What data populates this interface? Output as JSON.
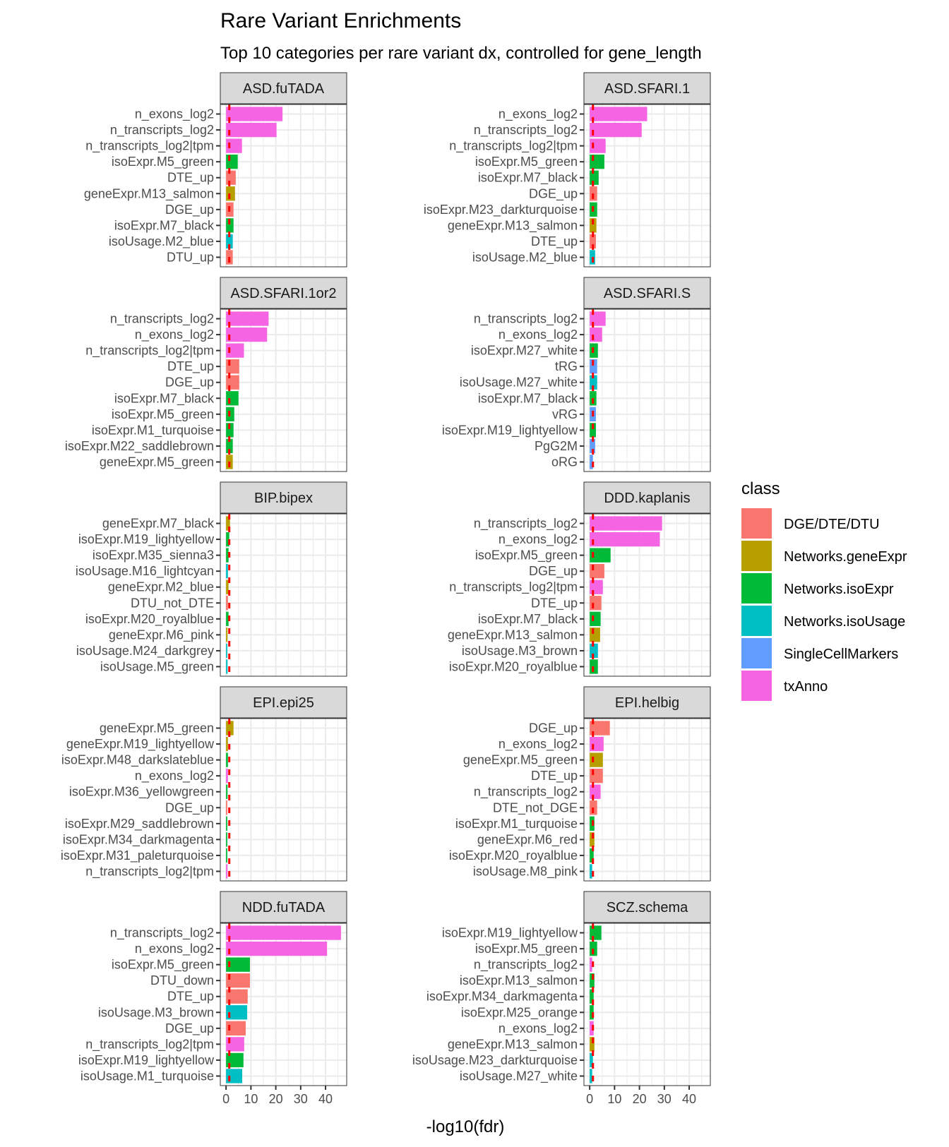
{
  "chart_data": {
    "type": "bar",
    "orientation": "horizontal",
    "title": "Rare Variant Enrichments",
    "subtitle": "Top 10 categories per rare variant dx, controlled for gene_length",
    "xlabel": "-log10(fdr)",
    "ylabel": "",
    "xlim": [
      -2.31,
      48.5
    ],
    "x_ticks": [
      0,
      10,
      20,
      30,
      40
    ],
    "grid": true,
    "reference_line": {
      "x": 1.3,
      "color": "#FF0000",
      "style": "dashed"
    },
    "legend": {
      "title": "class",
      "placement": "right",
      "entries": [
        {
          "label": "DGE/DTE/DTU",
          "color": "#F8766D"
        },
        {
          "label": "Networks.geneExpr",
          "color": "#B79F00"
        },
        {
          "label": "Networks.isoExpr",
          "color": "#00BA38"
        },
        {
          "label": "Networks.isoUsage",
          "color": "#00BFC4"
        },
        {
          "label": "SingleCellMarkers",
          "color": "#619CFF"
        },
        {
          "label": "txAnno",
          "color": "#F564E3"
        }
      ]
    },
    "facets": [
      {
        "name": "ASD.fuTADA",
        "bars": [
          {
            "label": "n_exons_log2",
            "value": 22.7,
            "class": "txAnno"
          },
          {
            "label": "n_transcripts_log2",
            "value": 20.3,
            "class": "txAnno"
          },
          {
            "label": "n_transcripts_log2|tpm",
            "value": 6.4,
            "class": "txAnno"
          },
          {
            "label": "isoExpr.M5_green",
            "value": 4.7,
            "class": "Networks.isoExpr"
          },
          {
            "label": "DTE_up",
            "value": 3.9,
            "class": "DGE/DTE/DTU"
          },
          {
            "label": "geneExpr.M13_salmon",
            "value": 3.6,
            "class": "Networks.geneExpr"
          },
          {
            "label": "DGE_up",
            "value": 3.0,
            "class": "DGE/DTE/DTU"
          },
          {
            "label": "isoExpr.M7_black",
            "value": 3.0,
            "class": "Networks.isoExpr"
          },
          {
            "label": "isoUsage.M2_blue",
            "value": 2.7,
            "class": "Networks.isoUsage"
          },
          {
            "label": "DTU_up",
            "value": 2.7,
            "class": "DGE/DTE/DTU"
          }
        ]
      },
      {
        "name": "ASD.SFARI.1",
        "bars": [
          {
            "label": "n_exons_log2",
            "value": 23.1,
            "class": "txAnno"
          },
          {
            "label": "n_transcripts_log2",
            "value": 20.9,
            "class": "txAnno"
          },
          {
            "label": "n_transcripts_log2|tpm",
            "value": 6.4,
            "class": "txAnno"
          },
          {
            "label": "isoExpr.M5_green",
            "value": 5.9,
            "class": "Networks.isoExpr"
          },
          {
            "label": "isoExpr.M7_black",
            "value": 3.6,
            "class": "Networks.isoExpr"
          },
          {
            "label": "DGE_up",
            "value": 3.0,
            "class": "DGE/DTE/DTU"
          },
          {
            "label": "isoExpr.M23_darkturquoise",
            "value": 3.0,
            "class": "Networks.isoExpr"
          },
          {
            "label": "geneExpr.M13_salmon",
            "value": 2.7,
            "class": "Networks.geneExpr"
          },
          {
            "label": "DTE_up",
            "value": 2.5,
            "class": "DGE/DTE/DTU"
          },
          {
            "label": "isoUsage.M2_blue",
            "value": 2.2,
            "class": "Networks.isoUsage"
          }
        ]
      },
      {
        "name": "ASD.SFARI.1or2",
        "bars": [
          {
            "label": "n_transcripts_log2",
            "value": 17.1,
            "class": "txAnno"
          },
          {
            "label": "n_exons_log2",
            "value": 16.5,
            "class": "txAnno"
          },
          {
            "label": "n_transcripts_log2|tpm",
            "value": 7.2,
            "class": "txAnno"
          },
          {
            "label": "DTE_up",
            "value": 5.3,
            "class": "DGE/DTE/DTU"
          },
          {
            "label": "DGE_up",
            "value": 5.3,
            "class": "DGE/DTE/DTU"
          },
          {
            "label": "isoExpr.M7_black",
            "value": 5.0,
            "class": "Networks.isoExpr"
          },
          {
            "label": "isoExpr.M5_green",
            "value": 3.3,
            "class": "Networks.isoExpr"
          },
          {
            "label": "isoExpr.M1_turquoise",
            "value": 3.0,
            "class": "Networks.isoExpr"
          },
          {
            "label": "isoExpr.M22_saddlebrown",
            "value": 2.7,
            "class": "Networks.isoExpr"
          },
          {
            "label": "geneExpr.M5_green",
            "value": 2.7,
            "class": "Networks.geneExpr"
          }
        ]
      },
      {
        "name": "ASD.SFARI.S",
        "bars": [
          {
            "label": "n_transcripts_log2",
            "value": 6.4,
            "class": "txAnno"
          },
          {
            "label": "n_exons_log2",
            "value": 5.0,
            "class": "txAnno"
          },
          {
            "label": "isoExpr.M27_white",
            "value": 3.3,
            "class": "Networks.isoExpr"
          },
          {
            "label": "tRG",
            "value": 3.0,
            "class": "SingleCellMarkers"
          },
          {
            "label": "isoUsage.M27_white",
            "value": 3.0,
            "class": "Networks.isoUsage"
          },
          {
            "label": "isoExpr.M7_black",
            "value": 2.7,
            "class": "Networks.isoExpr"
          },
          {
            "label": "vRG",
            "value": 2.5,
            "class": "SingleCellMarkers"
          },
          {
            "label": "isoExpr.M19_lightyellow",
            "value": 2.5,
            "class": "Networks.isoExpr"
          },
          {
            "label": "PgG2M",
            "value": 2.2,
            "class": "SingleCellMarkers"
          },
          {
            "label": "oRG",
            "value": 1.3,
            "class": "SingleCellMarkers"
          }
        ]
      },
      {
        "name": "BIP.bipex",
        "bars": [
          {
            "label": "geneExpr.M7_black",
            "value": 1.6,
            "class": "Networks.geneExpr"
          },
          {
            "label": "isoExpr.M19_lightyellow",
            "value": 1.3,
            "class": "Networks.isoExpr"
          },
          {
            "label": "isoExpr.M35_sienna3",
            "value": 1.0,
            "class": "Networks.isoExpr"
          },
          {
            "label": "isoUsage.M16_lightcyan",
            "value": 0.75,
            "class": "Networks.isoUsage"
          },
          {
            "label": "geneExpr.M2_blue",
            "value": 1.0,
            "class": "Networks.geneExpr"
          },
          {
            "label": "DTU_not_DTE",
            "value": 0.75,
            "class": "DGE/DTE/DTU"
          },
          {
            "label": "isoExpr.M20_royalblue",
            "value": 1.0,
            "class": "Networks.isoExpr"
          },
          {
            "label": "geneExpr.M6_pink",
            "value": 0.6,
            "class": "Networks.geneExpr"
          },
          {
            "label": "isoUsage.M24_darkgrey",
            "value": 0.5,
            "class": "Networks.isoUsage"
          },
          {
            "label": "isoUsage.M5_green",
            "value": 0.6,
            "class": "Networks.isoUsage"
          }
        ]
      },
      {
        "name": "DDD.kaplanis",
        "bars": [
          {
            "label": "n_transcripts_log2",
            "value": 29.1,
            "class": "txAnno"
          },
          {
            "label": "n_exons_log2",
            "value": 28.2,
            "class": "txAnno"
          },
          {
            "label": "isoExpr.M5_green",
            "value": 8.4,
            "class": "Networks.isoExpr"
          },
          {
            "label": "DGE_up",
            "value": 5.9,
            "class": "DGE/DTE/DTU"
          },
          {
            "label": "n_transcripts_log2|tpm",
            "value": 5.3,
            "class": "txAnno"
          },
          {
            "label": "DTE_up",
            "value": 4.7,
            "class": "DGE/DTE/DTU"
          },
          {
            "label": "isoExpr.M7_black",
            "value": 4.4,
            "class": "Networks.isoExpr"
          },
          {
            "label": "geneExpr.M13_salmon",
            "value": 4.2,
            "class": "Networks.geneExpr"
          },
          {
            "label": "isoUsage.M3_brown",
            "value": 3.3,
            "class": "Networks.isoUsage"
          },
          {
            "label": "isoExpr.M20_royalblue",
            "value": 3.3,
            "class": "Networks.isoExpr"
          }
        ]
      },
      {
        "name": "EPI.epi25",
        "bars": [
          {
            "label": "geneExpr.M5_green",
            "value": 3.0,
            "class": "Networks.geneExpr"
          },
          {
            "label": "geneExpr.M19_lightyellow",
            "value": 0.75,
            "class": "Networks.geneExpr"
          },
          {
            "label": "isoExpr.M48_darkslateblue",
            "value": 0.75,
            "class": "Networks.isoExpr"
          },
          {
            "label": "n_exons_log2",
            "value": 0.75,
            "class": "txAnno"
          },
          {
            "label": "isoExpr.M36_yellowgreen",
            "value": 0.6,
            "class": "Networks.isoExpr"
          },
          {
            "label": "DGE_up",
            "value": 0.5,
            "class": "DGE/DTE/DTU"
          },
          {
            "label": "isoExpr.M29_saddlebrown",
            "value": 0.5,
            "class": "Networks.isoExpr"
          },
          {
            "label": "isoExpr.M34_darkmagenta",
            "value": 0.5,
            "class": "Networks.isoExpr"
          },
          {
            "label": "isoExpr.M31_paleturquoise",
            "value": 0.5,
            "class": "Networks.isoExpr"
          },
          {
            "label": "n_transcripts_log2|tpm",
            "value": 0.6,
            "class": "txAnno"
          }
        ]
      },
      {
        "name": "EPI.helbig",
        "bars": [
          {
            "label": "DGE_up",
            "value": 8.1,
            "class": "DGE/DTE/DTU"
          },
          {
            "label": "n_exons_log2",
            "value": 5.6,
            "class": "txAnno"
          },
          {
            "label": "geneExpr.M5_green",
            "value": 5.3,
            "class": "Networks.geneExpr"
          },
          {
            "label": "DTE_up",
            "value": 5.3,
            "class": "DGE/DTE/DTU"
          },
          {
            "label": "n_transcripts_log2",
            "value": 4.4,
            "class": "txAnno"
          },
          {
            "label": "DTE_not_DGE",
            "value": 3.0,
            "class": "DGE/DTE/DTU"
          },
          {
            "label": "isoExpr.M1_turquoise",
            "value": 1.9,
            "class": "Networks.isoExpr"
          },
          {
            "label": "geneExpr.M6_red",
            "value": 1.9,
            "class": "Networks.geneExpr"
          },
          {
            "label": "isoExpr.M20_royalblue",
            "value": 1.6,
            "class": "Networks.isoExpr"
          },
          {
            "label": "isoUsage.M8_pink",
            "value": 1.0,
            "class": "Networks.isoUsage"
          }
        ]
      },
      {
        "name": "NDD.fuTADA",
        "bars": [
          {
            "label": "n_transcripts_log2",
            "value": 46.2,
            "class": "txAnno"
          },
          {
            "label": "n_exons_log2",
            "value": 40.6,
            "class": "txAnno"
          },
          {
            "label": "isoExpr.M5_green",
            "value": 9.6,
            "class": "Networks.isoExpr"
          },
          {
            "label": "DTU_down",
            "value": 9.6,
            "class": "DGE/DTE/DTU"
          },
          {
            "label": "DTE_up",
            "value": 8.7,
            "class": "DGE/DTE/DTU"
          },
          {
            "label": "isoUsage.M3_brown",
            "value": 8.5,
            "class": "Networks.isoUsage"
          },
          {
            "label": "DGE_up",
            "value": 7.9,
            "class": "DGE/DTE/DTU"
          },
          {
            "label": "n_transcripts_log2|tpm",
            "value": 7.3,
            "class": "txAnno"
          },
          {
            "label": "isoExpr.M19_lightyellow",
            "value": 7.0,
            "class": "Networks.isoExpr"
          },
          {
            "label": "isoUsage.M1_turquoise",
            "value": 6.5,
            "class": "Networks.isoUsage"
          }
        ]
      },
      {
        "name": "SCZ.schema",
        "bars": [
          {
            "label": "isoExpr.M19_lightyellow",
            "value": 4.7,
            "class": "Networks.isoExpr"
          },
          {
            "label": "isoExpr.M5_green",
            "value": 3.0,
            "class": "Networks.isoExpr"
          },
          {
            "label": "n_transcripts_log2",
            "value": 1.0,
            "class": "txAnno"
          },
          {
            "label": "isoExpr.M13_salmon",
            "value": 1.9,
            "class": "Networks.isoExpr"
          },
          {
            "label": "isoExpr.M34_darkmagenta",
            "value": 1.6,
            "class": "Networks.isoExpr"
          },
          {
            "label": "isoExpr.M25_orange",
            "value": 1.6,
            "class": "Networks.isoExpr"
          },
          {
            "label": "n_exons_log2",
            "value": 1.6,
            "class": "txAnno"
          },
          {
            "label": "geneExpr.M13_salmon",
            "value": 1.9,
            "class": "Networks.geneExpr"
          },
          {
            "label": "isoUsage.M23_darkturquoise",
            "value": 1.3,
            "class": "Networks.isoUsage"
          },
          {
            "label": "isoUsage.M27_white",
            "value": 1.0,
            "class": "Networks.isoUsage"
          }
        ]
      }
    ]
  }
}
